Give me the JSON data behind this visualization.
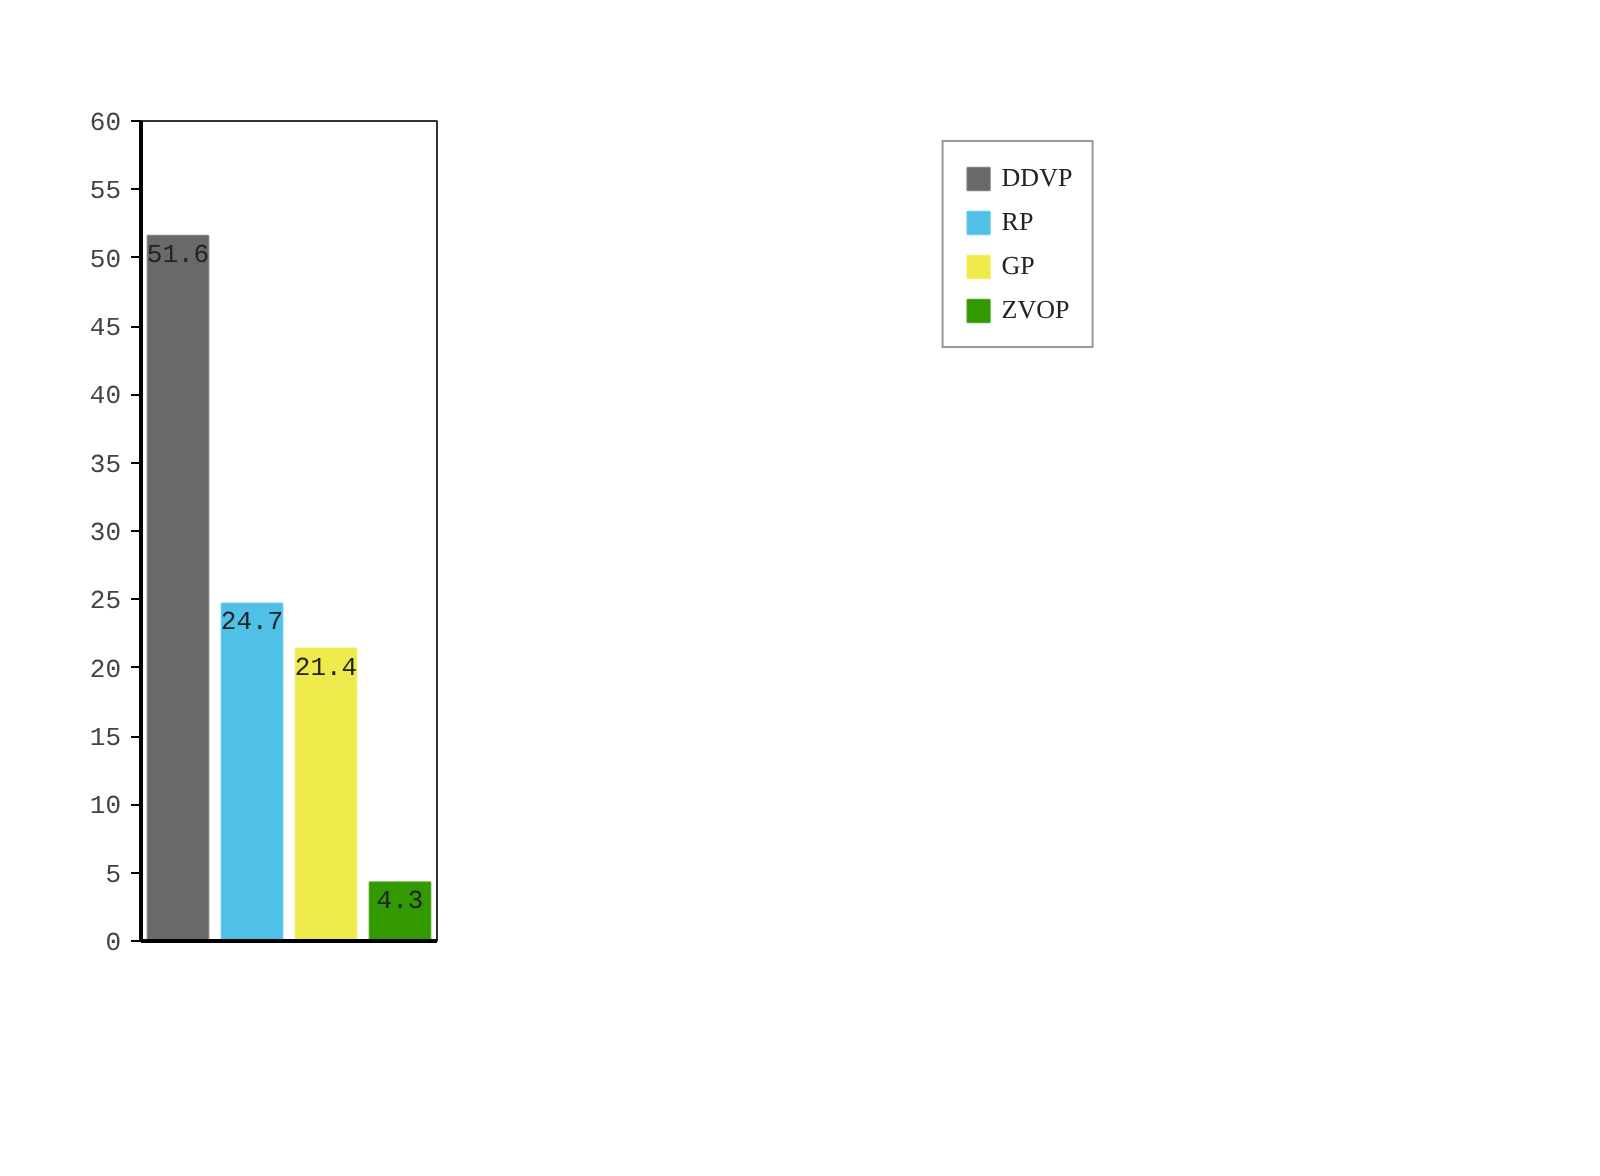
{
  "chart_data": {
    "type": "bar",
    "categories": [
      null,
      null,
      null,
      null
    ],
    "series": [
      {
        "name": "DDVP",
        "color": "#696969",
        "values": [
          51.6,
          null,
          null,
          null
        ]
      },
      {
        "name": "RP",
        "color": "#4fc1e6",
        "values": [
          null,
          24.7,
          null,
          null
        ]
      },
      {
        "name": "GP",
        "color": "#efea4c",
        "values": [
          null,
          null,
          21.4,
          null
        ]
      },
      {
        "name": "ZVOP",
        "color": "#339900",
        "values": [
          null,
          null,
          null,
          4.3
        ]
      }
    ],
    "ylim": [
      0,
      60
    ],
    "yticks": [
      0,
      5,
      10,
      15,
      20,
      25,
      30,
      35,
      40,
      45,
      50,
      55,
      60
    ],
    "data_labels": true,
    "legend": "right",
    "grid": false
  }
}
